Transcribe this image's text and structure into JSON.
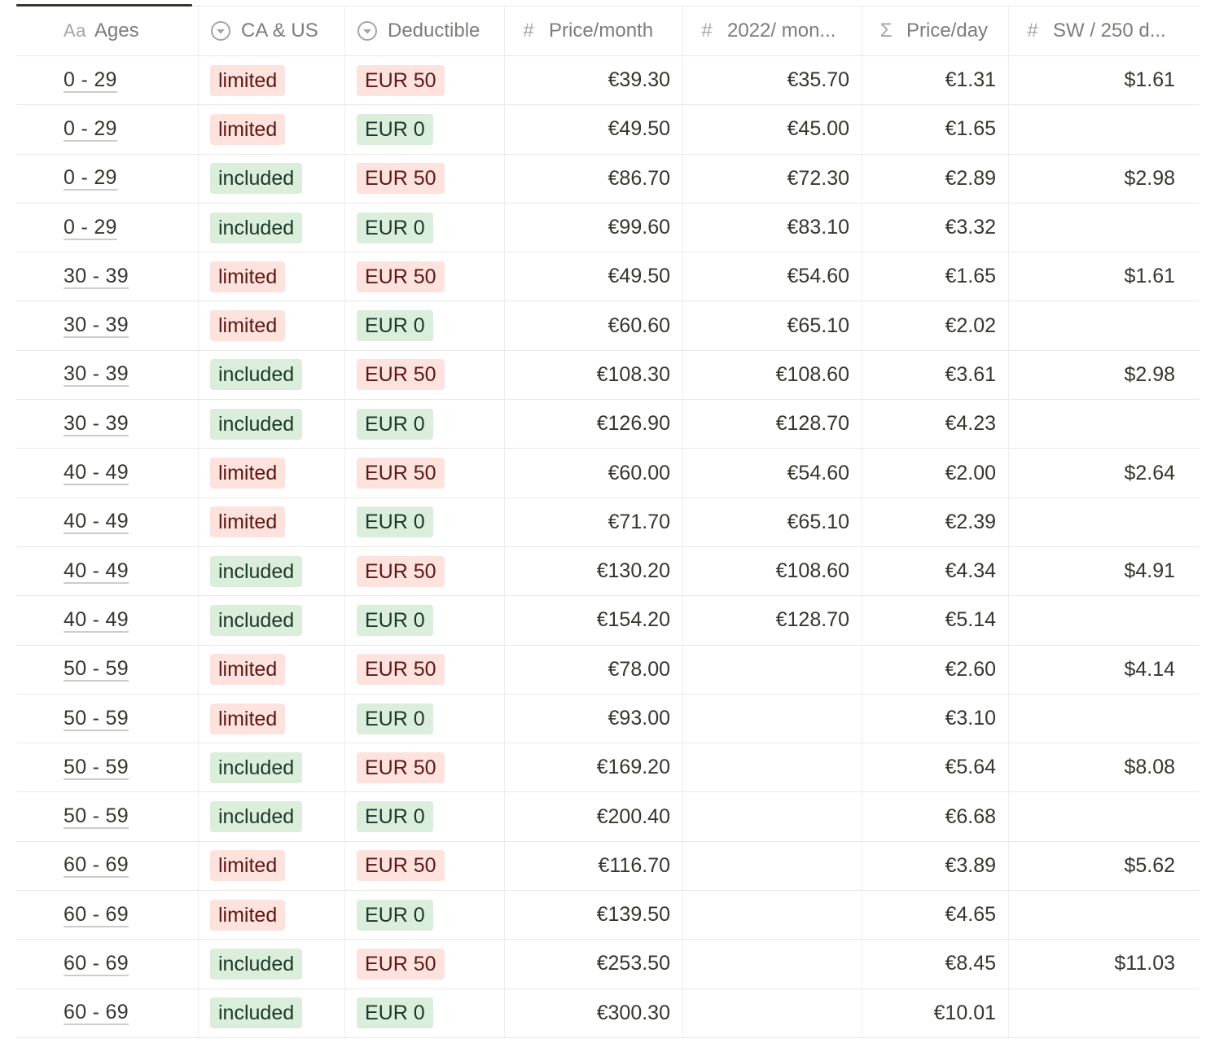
{
  "columns": [
    {
      "icon": "Aa",
      "icon_name": "title-property-icon",
      "label": "Ages"
    },
    {
      "icon": "select",
      "icon_name": "select-property-icon",
      "label": "CA & US"
    },
    {
      "icon": "select",
      "icon_name": "select-property-icon",
      "label": "Deductible"
    },
    {
      "icon": "#",
      "icon_name": "number-property-icon",
      "label": "Price/month"
    },
    {
      "icon": "#",
      "icon_name": "number-property-icon",
      "label": "2022/ mon..."
    },
    {
      "icon": "Σ",
      "icon_name": "formula-property-icon",
      "label": "Price/day"
    },
    {
      "icon": "#",
      "icon_name": "number-property-icon",
      "label": "SW / 250 d..."
    }
  ],
  "tag_colors": {
    "red": {
      "background": "#fde2dd",
      "text": "#5d1715"
    },
    "green": {
      "background": "#dbeddb",
      "text": "#1c3829"
    }
  },
  "rows": [
    {
      "age": "0 - 29",
      "ca_us": {
        "label": "limited",
        "color": "red"
      },
      "deductible": {
        "label": "EUR 50",
        "color": "red"
      },
      "price_month": "€39.30",
      "y2022_month": "€35.70",
      "price_day": "€1.31",
      "sw_250": "$1.61"
    },
    {
      "age": "0 - 29",
      "ca_us": {
        "label": "limited",
        "color": "red"
      },
      "deductible": {
        "label": "EUR 0",
        "color": "green"
      },
      "price_month": "€49.50",
      "y2022_month": "€45.00",
      "price_day": "€1.65",
      "sw_250": ""
    },
    {
      "age": "0 - 29",
      "ca_us": {
        "label": "included",
        "color": "green"
      },
      "deductible": {
        "label": "EUR 50",
        "color": "red"
      },
      "price_month": "€86.70",
      "y2022_month": "€72.30",
      "price_day": "€2.89",
      "sw_250": "$2.98"
    },
    {
      "age": "0 - 29",
      "ca_us": {
        "label": "included",
        "color": "green"
      },
      "deductible": {
        "label": "EUR 0",
        "color": "green"
      },
      "price_month": "€99.60",
      "y2022_month": "€83.10",
      "price_day": "€3.32",
      "sw_250": ""
    },
    {
      "age": "30 - 39",
      "ca_us": {
        "label": "limited",
        "color": "red"
      },
      "deductible": {
        "label": "EUR 50",
        "color": "red"
      },
      "price_month": "€49.50",
      "y2022_month": "€54.60",
      "price_day": "€1.65",
      "sw_250": "$1.61"
    },
    {
      "age": "30 - 39",
      "ca_us": {
        "label": "limited",
        "color": "red"
      },
      "deductible": {
        "label": "EUR 0",
        "color": "green"
      },
      "price_month": "€60.60",
      "y2022_month": "€65.10",
      "price_day": "€2.02",
      "sw_250": ""
    },
    {
      "age": "30 - 39",
      "ca_us": {
        "label": "included",
        "color": "green"
      },
      "deductible": {
        "label": "EUR 50",
        "color": "red"
      },
      "price_month": "€108.30",
      "y2022_month": "€108.60",
      "price_day": "€3.61",
      "sw_250": "$2.98"
    },
    {
      "age": "30 - 39",
      "ca_us": {
        "label": "included",
        "color": "green"
      },
      "deductible": {
        "label": "EUR 0",
        "color": "green"
      },
      "price_month": "€126.90",
      "y2022_month": "€128.70",
      "price_day": "€4.23",
      "sw_250": ""
    },
    {
      "age": "40 - 49",
      "ca_us": {
        "label": "limited",
        "color": "red"
      },
      "deductible": {
        "label": "EUR 50",
        "color": "red"
      },
      "price_month": "€60.00",
      "y2022_month": "€54.60",
      "price_day": "€2.00",
      "sw_250": "$2.64"
    },
    {
      "age": "40 - 49",
      "ca_us": {
        "label": "limited",
        "color": "red"
      },
      "deductible": {
        "label": "EUR 0",
        "color": "green"
      },
      "price_month": "€71.70",
      "y2022_month": "€65.10",
      "price_day": "€2.39",
      "sw_250": ""
    },
    {
      "age": "40 - 49",
      "ca_us": {
        "label": "included",
        "color": "green"
      },
      "deductible": {
        "label": "EUR 50",
        "color": "red"
      },
      "price_month": "€130.20",
      "y2022_month": "€108.60",
      "price_day": "€4.34",
      "sw_250": "$4.91"
    },
    {
      "age": "40 - 49",
      "ca_us": {
        "label": "included",
        "color": "green"
      },
      "deductible": {
        "label": "EUR 0",
        "color": "green"
      },
      "price_month": "€154.20",
      "y2022_month": "€128.70",
      "price_day": "€5.14",
      "sw_250": ""
    },
    {
      "age": "50 - 59",
      "ca_us": {
        "label": "limited",
        "color": "red"
      },
      "deductible": {
        "label": "EUR 50",
        "color": "red"
      },
      "price_month": "€78.00",
      "y2022_month": "",
      "price_day": "€2.60",
      "sw_250": "$4.14"
    },
    {
      "age": "50 - 59",
      "ca_us": {
        "label": "limited",
        "color": "red"
      },
      "deductible": {
        "label": "EUR 0",
        "color": "green"
      },
      "price_month": "€93.00",
      "y2022_month": "",
      "price_day": "€3.10",
      "sw_250": ""
    },
    {
      "age": "50 - 59",
      "ca_us": {
        "label": "included",
        "color": "green"
      },
      "deductible": {
        "label": "EUR 50",
        "color": "red"
      },
      "price_month": "€169.20",
      "y2022_month": "",
      "price_day": "€5.64",
      "sw_250": "$8.08"
    },
    {
      "age": "50 - 59",
      "ca_us": {
        "label": "included",
        "color": "green"
      },
      "deductible": {
        "label": "EUR 0",
        "color": "green"
      },
      "price_month": "€200.40",
      "y2022_month": "",
      "price_day": "€6.68",
      "sw_250": ""
    },
    {
      "age": "60 - 69",
      "ca_us": {
        "label": "limited",
        "color": "red"
      },
      "deductible": {
        "label": "EUR 50",
        "color": "red"
      },
      "price_month": "€116.70",
      "y2022_month": "",
      "price_day": "€3.89",
      "sw_250": "$5.62"
    },
    {
      "age": "60 - 69",
      "ca_us": {
        "label": "limited",
        "color": "red"
      },
      "deductible": {
        "label": "EUR 0",
        "color": "green"
      },
      "price_month": "€139.50",
      "y2022_month": "",
      "price_day": "€4.65",
      "sw_250": ""
    },
    {
      "age": "60 - 69",
      "ca_us": {
        "label": "included",
        "color": "green"
      },
      "deductible": {
        "label": "EUR 50",
        "color": "red"
      },
      "price_month": "€253.50",
      "y2022_month": "",
      "price_day": "€8.45",
      "sw_250": "$11.03"
    },
    {
      "age": "60 - 69",
      "ca_us": {
        "label": "included",
        "color": "green"
      },
      "deductible": {
        "label": "EUR 0",
        "color": "green"
      },
      "price_month": "€300.30",
      "y2022_month": "",
      "price_day": "€10.01",
      "sw_250": ""
    }
  ]
}
